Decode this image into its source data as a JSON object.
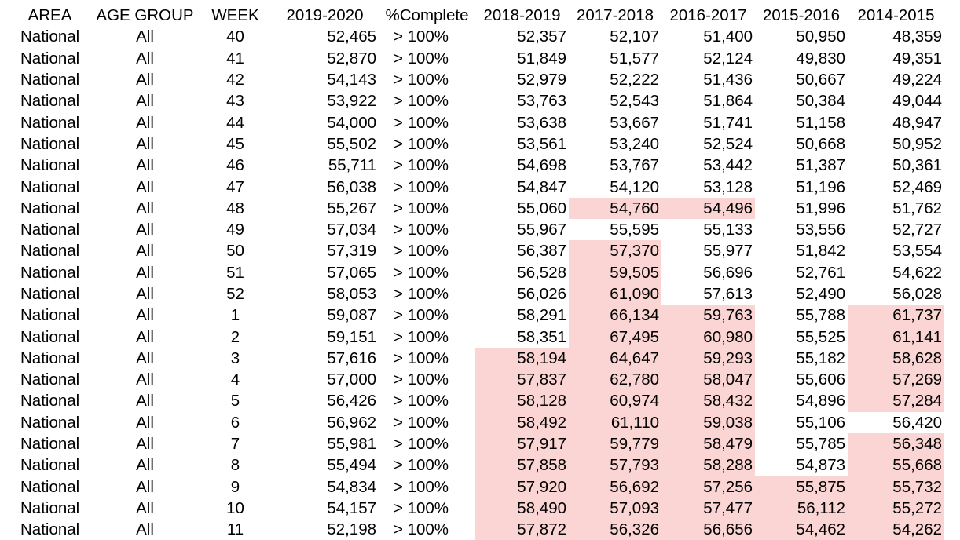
{
  "highlight_color": "#fbd5d3",
  "headers": [
    "AREA",
    "AGE GROUP",
    "WEEK",
    "2019-2020",
    "%Complete",
    "2018-2019",
    "2017-2018",
    "2016-2017",
    "2015-2016",
    "2014-2015"
  ],
  "rows": [
    {
      "area": "National",
      "age_group": "All",
      "week": "40",
      "v2019_2020": "52,465",
      "pct_complete": "> 100%",
      "v2018_2019": "52,357",
      "v2017_2018": "52,107",
      "v2016_2017": "51,400",
      "v2015_2016": "50,950",
      "v2014_2015": "48,359",
      "highlight": []
    },
    {
      "area": "National",
      "age_group": "All",
      "week": "41",
      "v2019_2020": "52,870",
      "pct_complete": "> 100%",
      "v2018_2019": "51,849",
      "v2017_2018": "51,577",
      "v2016_2017": "52,124",
      "v2015_2016": "49,830",
      "v2014_2015": "49,351",
      "highlight": []
    },
    {
      "area": "National",
      "age_group": "All",
      "week": "42",
      "v2019_2020": "54,143",
      "pct_complete": "> 100%",
      "v2018_2019": "52,979",
      "v2017_2018": "52,222",
      "v2016_2017": "51,436",
      "v2015_2016": "50,667",
      "v2014_2015": "49,224",
      "highlight": []
    },
    {
      "area": "National",
      "age_group": "All",
      "week": "43",
      "v2019_2020": "53,922",
      "pct_complete": "> 100%",
      "v2018_2019": "53,763",
      "v2017_2018": "52,543",
      "v2016_2017": "51,864",
      "v2015_2016": "50,384",
      "v2014_2015": "49,044",
      "highlight": []
    },
    {
      "area": "National",
      "age_group": "All",
      "week": "44",
      "v2019_2020": "54,000",
      "pct_complete": "> 100%",
      "v2018_2019": "53,638",
      "v2017_2018": "53,667",
      "v2016_2017": "51,741",
      "v2015_2016": "51,158",
      "v2014_2015": "48,947",
      "highlight": []
    },
    {
      "area": "National",
      "age_group": "All",
      "week": "45",
      "v2019_2020": "55,502",
      "pct_complete": "> 100%",
      "v2018_2019": "53,561",
      "v2017_2018": "53,240",
      "v2016_2017": "52,524",
      "v2015_2016": "50,668",
      "v2014_2015": "50,952",
      "highlight": []
    },
    {
      "area": "National",
      "age_group": "All",
      "week": "46",
      "v2019_2020": "55,711",
      "pct_complete": "> 100%",
      "v2018_2019": "54,698",
      "v2017_2018": "53,767",
      "v2016_2017": "53,442",
      "v2015_2016": "51,387",
      "v2014_2015": "50,361",
      "highlight": []
    },
    {
      "area": "National",
      "age_group": "All",
      "week": "47",
      "v2019_2020": "56,038",
      "pct_complete": "> 100%",
      "v2018_2019": "54,847",
      "v2017_2018": "54,120",
      "v2016_2017": "53,128",
      "v2015_2016": "51,196",
      "v2014_2015": "52,469",
      "highlight": []
    },
    {
      "area": "National",
      "age_group": "All",
      "week": "48",
      "v2019_2020": "55,267",
      "pct_complete": "> 100%",
      "v2018_2019": "55,060",
      "v2017_2018": "54,760",
      "v2016_2017": "54,496",
      "v2015_2016": "51,996",
      "v2014_2015": "51,762",
      "highlight": [
        "v2017_2018",
        "v2016_2017"
      ]
    },
    {
      "area": "National",
      "age_group": "All",
      "week": "49",
      "v2019_2020": "57,034",
      "pct_complete": "> 100%",
      "v2018_2019": "55,967",
      "v2017_2018": "55,595",
      "v2016_2017": "55,133",
      "v2015_2016": "53,556",
      "v2014_2015": "52,727",
      "highlight": []
    },
    {
      "area": "National",
      "age_group": "All",
      "week": "50",
      "v2019_2020": "57,319",
      "pct_complete": "> 100%",
      "v2018_2019": "56,387",
      "v2017_2018": "57,370",
      "v2016_2017": "55,977",
      "v2015_2016": "51,842",
      "v2014_2015": "53,554",
      "highlight": [
        "v2017_2018"
      ]
    },
    {
      "area": "National",
      "age_group": "All",
      "week": "51",
      "v2019_2020": "57,065",
      "pct_complete": "> 100%",
      "v2018_2019": "56,528",
      "v2017_2018": "59,505",
      "v2016_2017": "56,696",
      "v2015_2016": "52,761",
      "v2014_2015": "54,622",
      "highlight": [
        "v2017_2018"
      ]
    },
    {
      "area": "National",
      "age_group": "All",
      "week": "52",
      "v2019_2020": "58,053",
      "pct_complete": "> 100%",
      "v2018_2019": "56,026",
      "v2017_2018": "61,090",
      "v2016_2017": "57,613",
      "v2015_2016": "52,490",
      "v2014_2015": "56,028",
      "highlight": [
        "v2017_2018"
      ]
    },
    {
      "area": "National",
      "age_group": "All",
      "week": "1",
      "v2019_2020": "59,087",
      "pct_complete": "> 100%",
      "v2018_2019": "58,291",
      "v2017_2018": "66,134",
      "v2016_2017": "59,763",
      "v2015_2016": "55,788",
      "v2014_2015": "61,737",
      "highlight": [
        "v2017_2018",
        "v2016_2017",
        "v2014_2015"
      ]
    },
    {
      "area": "National",
      "age_group": "All",
      "week": "2",
      "v2019_2020": "59,151",
      "pct_complete": "> 100%",
      "v2018_2019": "58,351",
      "v2017_2018": "67,495",
      "v2016_2017": "60,980",
      "v2015_2016": "55,525",
      "v2014_2015": "61,141",
      "highlight": [
        "v2017_2018",
        "v2016_2017",
        "v2014_2015"
      ]
    },
    {
      "area": "National",
      "age_group": "All",
      "week": "3",
      "v2019_2020": "57,616",
      "pct_complete": "> 100%",
      "v2018_2019": "58,194",
      "v2017_2018": "64,647",
      "v2016_2017": "59,293",
      "v2015_2016": "55,182",
      "v2014_2015": "58,628",
      "highlight": [
        "v2018_2019",
        "v2017_2018",
        "v2016_2017",
        "v2014_2015"
      ]
    },
    {
      "area": "National",
      "age_group": "All",
      "week": "4",
      "v2019_2020": "57,000",
      "pct_complete": "> 100%",
      "v2018_2019": "57,837",
      "v2017_2018": "62,780",
      "v2016_2017": "58,047",
      "v2015_2016": "55,606",
      "v2014_2015": "57,269",
      "highlight": [
        "v2018_2019",
        "v2017_2018",
        "v2016_2017",
        "v2014_2015"
      ]
    },
    {
      "area": "National",
      "age_group": "All",
      "week": "5",
      "v2019_2020": "56,426",
      "pct_complete": "> 100%",
      "v2018_2019": "58,128",
      "v2017_2018": "60,974",
      "v2016_2017": "58,432",
      "v2015_2016": "54,896",
      "v2014_2015": "57,284",
      "highlight": [
        "v2018_2019",
        "v2017_2018",
        "v2016_2017",
        "v2014_2015"
      ]
    },
    {
      "area": "National",
      "age_group": "All",
      "week": "6",
      "v2019_2020": "56,962",
      "pct_complete": "> 100%",
      "v2018_2019": "58,492",
      "v2017_2018": "61,110",
      "v2016_2017": "59,038",
      "v2015_2016": "55,106",
      "v2014_2015": "56,420",
      "highlight": [
        "v2018_2019",
        "v2017_2018",
        "v2016_2017"
      ]
    },
    {
      "area": "National",
      "age_group": "All",
      "week": "7",
      "v2019_2020": "55,981",
      "pct_complete": "> 100%",
      "v2018_2019": "57,917",
      "v2017_2018": "59,779",
      "v2016_2017": "58,479",
      "v2015_2016": "55,785",
      "v2014_2015": "56,348",
      "highlight": [
        "v2018_2019",
        "v2017_2018",
        "v2016_2017",
        "v2014_2015"
      ]
    },
    {
      "area": "National",
      "age_group": "All",
      "week": "8",
      "v2019_2020": "55,494",
      "pct_complete": "> 100%",
      "v2018_2019": "57,858",
      "v2017_2018": "57,793",
      "v2016_2017": "58,288",
      "v2015_2016": "54,873",
      "v2014_2015": "55,668",
      "highlight": [
        "v2018_2019",
        "v2017_2018",
        "v2016_2017",
        "v2014_2015"
      ]
    },
    {
      "area": "National",
      "age_group": "All",
      "week": "9",
      "v2019_2020": "54,834",
      "pct_complete": "> 100%",
      "v2018_2019": "57,920",
      "v2017_2018": "56,692",
      "v2016_2017": "57,256",
      "v2015_2016": "55,875",
      "v2014_2015": "55,732",
      "highlight": [
        "v2018_2019",
        "v2017_2018",
        "v2016_2017",
        "v2015_2016",
        "v2014_2015"
      ]
    },
    {
      "area": "National",
      "age_group": "All",
      "week": "10",
      "v2019_2020": "54,157",
      "pct_complete": "> 100%",
      "v2018_2019": "58,490",
      "v2017_2018": "57,093",
      "v2016_2017": "57,477",
      "v2015_2016": "56,112",
      "v2014_2015": "55,272",
      "highlight": [
        "v2018_2019",
        "v2017_2018",
        "v2016_2017",
        "v2015_2016",
        "v2014_2015"
      ]
    },
    {
      "area": "National",
      "age_group": "All",
      "week": "11",
      "v2019_2020": "52,198",
      "pct_complete": "> 100%",
      "v2018_2019": "57,872",
      "v2017_2018": "56,326",
      "v2016_2017": "56,656",
      "v2015_2016": "54,462",
      "v2014_2015": "54,262",
      "highlight": [
        "v2018_2019",
        "v2017_2018",
        "v2016_2017",
        "v2015_2016",
        "v2014_2015"
      ]
    }
  ]
}
